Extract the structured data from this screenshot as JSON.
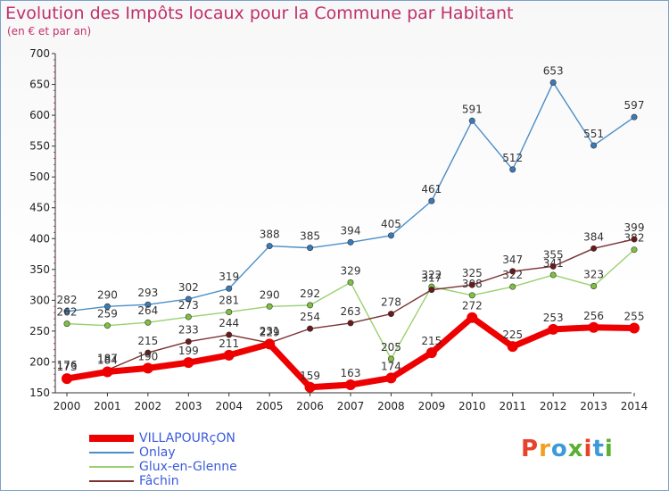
{
  "header": {
    "title": "Evolution des Impôts locaux pour la Commune par Habitant",
    "subtitle": "(en € et par an)"
  },
  "logo": {
    "text": "Proxiti",
    "colors": [
      "#e8422b",
      "#f0a020",
      "#3b9bd8",
      "#5ab030",
      "#e8422b",
      "#3b9bd8",
      "#5ab030"
    ]
  },
  "chart_data": {
    "type": "line",
    "title": "Evolution des Impôts locaux pour la Commune par Habitant",
    "subtitle": "(en € et par an)",
    "xlabel": "",
    "ylabel": "",
    "ylim": [
      150,
      700
    ],
    "yticks": [
      150,
      200,
      250,
      300,
      350,
      400,
      450,
      500,
      550,
      600,
      650,
      700
    ],
    "grid": false,
    "legend_position": "bottom-left",
    "x": [
      "2000",
      "2001",
      "2002",
      "2003",
      "2004",
      "2005",
      "2006",
      "2007",
      "2008",
      "2009",
      "2010",
      "2011",
      "2012",
      "2013",
      "2014"
    ],
    "series": [
      {
        "name": "Onlay",
        "color": "#4a8ec8",
        "marker": "#3a7ab8",
        "values": [
          282,
          290,
          293,
          302,
          319,
          388,
          385,
          394,
          405,
          461,
          591,
          512,
          653,
          551,
          597
        ]
      },
      {
        "name": "Glux-en-Glenne",
        "color": "#9ad070",
        "marker": "#80c040",
        "values": [
          262,
          259,
          264,
          273,
          281,
          290,
          292,
          329,
          205,
          322,
          308,
          322,
          341,
          323,
          382
        ]
      },
      {
        "name": "Fâchin",
        "color": "#7a3030",
        "marker": "#6a1a1a",
        "values": [
          176,
          187,
          215,
          233,
          244,
          231,
          254,
          263,
          278,
          317,
          325,
          347,
          355,
          384,
          399
        ]
      },
      {
        "name": "VILLAPOURçON",
        "color": "#ee0000",
        "marker": "#ee0000",
        "values": [
          173,
          184,
          190,
          199,
          211,
          229,
          159,
          163,
          174,
          215,
          272,
          225,
          253,
          256,
          255
        ]
      }
    ]
  }
}
